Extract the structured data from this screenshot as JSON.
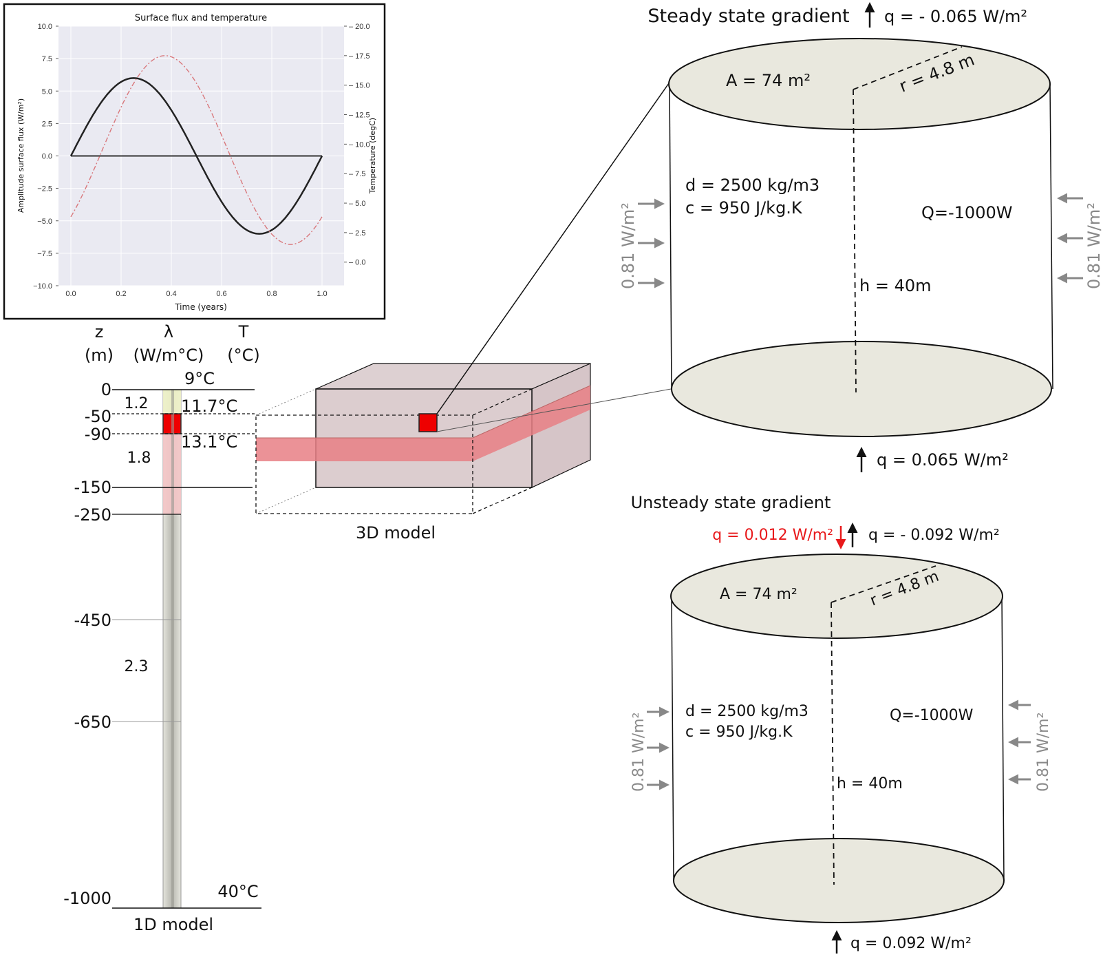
{
  "chart_data": {
    "type": "line",
    "title": "Surface flux and temperature",
    "xlabel": "Time (years)",
    "ylabel": "Amplitude surface flux (W/m²)",
    "y2label": "Temperature (degC)",
    "xlim": [
      0.0,
      1.0
    ],
    "ylim": [
      -10.0,
      10.0
    ],
    "y2lim": [
      -2.0,
      20.0
    ],
    "x_ticks": [
      "0.0",
      "0.2",
      "0.4",
      "0.6",
      "0.8",
      "1.0"
    ],
    "y_ticks": [
      "10.0",
      "7.5",
      "5.0",
      "2.5",
      "0.0",
      "−2.5",
      "−5.0",
      "−7.5",
      "−10.0"
    ],
    "y2_ticks": [
      "20.0",
      "17.5",
      "15.0",
      "12.5",
      "10.0",
      "7.5",
      "5.0",
      "2.5",
      "0.0"
    ],
    "grid": true,
    "series": [
      {
        "axis": "left",
        "color": "#222222",
        "style": "solid",
        "x": [
          0.0,
          0.05,
          0.1,
          0.15,
          0.2,
          0.25,
          0.3,
          0.35,
          0.4,
          0.45,
          0.5,
          0.55,
          0.6,
          0.65,
          0.7,
          0.75,
          0.8,
          0.85,
          0.9,
          0.95,
          1.0
        ],
        "y": [
          0.0,
          1.85,
          3.53,
          4.85,
          5.71,
          6.0,
          5.71,
          4.85,
          3.53,
          1.85,
          0.0,
          -1.85,
          -3.53,
          -4.85,
          -5.71,
          -6.0,
          -5.71,
          -4.85,
          -3.53,
          -1.85,
          0.0
        ]
      },
      {
        "axis": "right",
        "color": "#d9787c",
        "style": "dashdot",
        "x": [
          0.0,
          0.05,
          0.1,
          0.15,
          0.2,
          0.25,
          0.3,
          0.35,
          0.4,
          0.45,
          0.5,
          0.55,
          0.6,
          0.65,
          0.7,
          0.75,
          0.8,
          0.85,
          0.9,
          0.95,
          1.0
        ],
        "y": [
          3.8,
          4.9,
          6.5,
          8.3,
          10.4,
          12.5,
          14.6,
          16.2,
          17.3,
          17.6,
          17.1,
          15.7,
          13.7,
          11.5,
          9.3,
          7.1,
          5.0,
          3.3,
          2.1,
          1.8,
          2.9
        ]
      }
    ]
  },
  "column": {
    "headers": [
      {
        "line1": "z",
        "line2": "(m)"
      },
      {
        "line1": "λ",
        "line2": "(W/m°C)"
      },
      {
        "line1": "T",
        "line2": "(°C)"
      }
    ],
    "depths": [
      "0",
      "-50",
      "-90",
      "-150",
      "-250",
      "-450",
      "-650",
      "-1000"
    ],
    "conductivities": [
      "1.2",
      "1.8",
      "2.3"
    ],
    "temperatures": [
      "9°C",
      "11.7°C",
      "13.1°C",
      "40°C"
    ],
    "label": "1D model"
  },
  "block": {
    "label": "3D model"
  },
  "steady": {
    "title": "Steady state gradient",
    "q_top": "q = - 0.065 W/m²",
    "q_bottom": "q = 0.065 W/m²",
    "area": "A = 74 m²",
    "radius": "r = 4.8 m",
    "density": "d = 2500 kg/m3",
    "heat_capacity": "c = 950 J/kg.K",
    "power": "Q=-1000W",
    "height": "h = 40m",
    "lateral_flux": "0.81 W/m²"
  },
  "unsteady": {
    "title": "Unsteady state gradient",
    "q_top_down": "q = 0.012 W/m²",
    "q_top_up": "q = - 0.092 W/m²",
    "q_bottom": "q = 0.092 W/m²",
    "area": "A = 74 m²",
    "radius": "r = 4.8 m",
    "density": "d = 2500 kg/m3",
    "heat_capacity": "c = 950 J/kg.K",
    "power": "Q=-1000W",
    "height": "h = 40m",
    "lateral_flux": "0.81 W/m²"
  },
  "colors": {
    "cylinder_cap": "#e9e8de",
    "block_fill": "#d9c9cb",
    "layer": "#e87f85",
    "highlight": "#ee0000",
    "plot_bg": "#eaeaf2",
    "arrow_grey": "#888888",
    "flux_red": "#e8191b"
  }
}
